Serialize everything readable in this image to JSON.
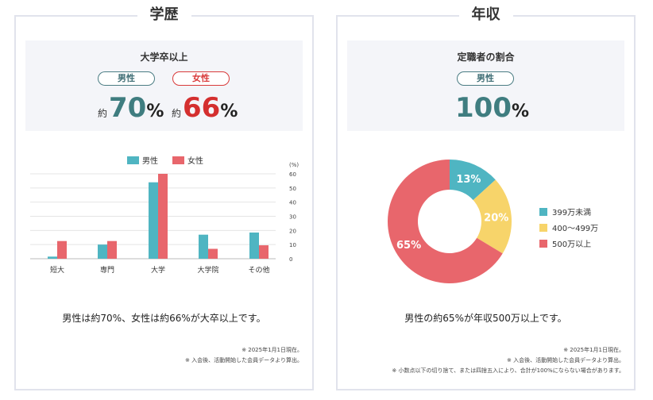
{
  "education": {
    "title": "学歴",
    "summary": {
      "title": "大学卒以上",
      "male_label": "男性",
      "female_label": "女性",
      "prefix": "約",
      "male_value": "70",
      "female_value": "66",
      "unit": "%"
    },
    "caption": "男性は約70%、女性は約66%が大卒以上です。",
    "notes": [
      "※ 2025年1月1日現在。",
      "※ 入会後、活動開始した会員データより算出。"
    ]
  },
  "income": {
    "title": "年収",
    "summary": {
      "title": "定職者の割合",
      "male_label": "男性",
      "value": "100",
      "unit": "%"
    },
    "caption": "男性の約65%が年収500万以上です。",
    "notes": [
      "※ 2025年1月1日現在。",
      "※ 入会後、活動開始した会員データより算出。",
      "※ 小数点以下の切り捨て、または四捨五入により、合計が100%にならない場合があります。"
    ]
  },
  "colors": {
    "male": "#4fb5c2",
    "female": "#e8666c",
    "yellow": "#f7d46a",
    "teal_text": "#3f7d80",
    "red_text": "#d42f2f"
  },
  "chart_data": [
    {
      "type": "bar",
      "title": "",
      "categories": [
        "短大",
        "専門",
        "大学",
        "大学院",
        "その他"
      ],
      "series": [
        {
          "name": "男性",
          "values": [
            1.5,
            10,
            54,
            17,
            18.5
          ]
        },
        {
          "name": "女性",
          "values": [
            12.5,
            12.5,
            60,
            7,
            9.5
          ]
        }
      ],
      "ylabel": "(%)",
      "ylim": [
        0,
        60
      ],
      "yticks": [
        0,
        10,
        20,
        30,
        40,
        50,
        60
      ],
      "legend": "top-center",
      "grid": true
    },
    {
      "type": "pie",
      "title": "",
      "labels": [
        "399万未満",
        "400〜499万",
        "500万以上"
      ],
      "values": [
        13,
        20,
        65
      ],
      "value_labels": [
        "13%",
        "20%",
        "65%"
      ],
      "colors": [
        "#4fb5c2",
        "#f7d46a",
        "#e8666c"
      ],
      "donut": true,
      "legend": "right"
    }
  ]
}
